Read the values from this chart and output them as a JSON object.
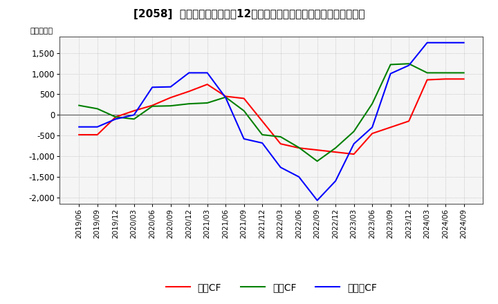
{
  "title": "[2058]  キャッシュフローの12か月移動合計の対前年同期増減額の推移",
  "ylabel": "（百万円）",
  "ylim": [
    -2150,
    1900
  ],
  "yticks": [
    -2000,
    -1500,
    -1000,
    -500,
    0,
    500,
    1000,
    1500
  ],
  "x_labels": [
    "2019/06",
    "2019/09",
    "2019/12",
    "2020/03",
    "2020/06",
    "2020/09",
    "2020/12",
    "2021/03",
    "2021/06",
    "2021/09",
    "2021/12",
    "2022/03",
    "2022/06",
    "2022/09",
    "2022/12",
    "2023/03",
    "2023/06",
    "2023/09",
    "2023/12",
    "2024/03",
    "2024/06",
    "2024/09"
  ],
  "operating_cf": [
    -480,
    -480,
    -50,
    100,
    230,
    420,
    570,
    740,
    450,
    400,
    -150,
    -700,
    -800,
    -850,
    -900,
    -950,
    -450,
    -300,
    -150,
    850,
    870,
    870
  ],
  "investing_cf": [
    230,
    150,
    -50,
    -100,
    210,
    220,
    270,
    290,
    430,
    100,
    -480,
    -530,
    -790,
    -1120,
    -800,
    -400,
    270,
    1220,
    1240,
    1020,
    1020,
    1020
  ],
  "free_cf": [
    -290,
    -290,
    -100,
    0,
    670,
    680,
    1020,
    1020,
    420,
    -580,
    -680,
    -1270,
    -1500,
    -2070,
    -1600,
    -700,
    -300,
    1000,
    1200,
    1750,
    1750,
    1750
  ],
  "color_operating": "#ff0000",
  "color_investing": "#008000",
  "color_free": "#0000ff",
  "legend_labels": [
    "営業CF",
    "投資CF",
    "フリーCF"
  ],
  "background_color": "#ffffff",
  "plot_bg_color": "#f5f5f5",
  "grid_color": "#aaaaaa",
  "zero_line_color": "#555555"
}
